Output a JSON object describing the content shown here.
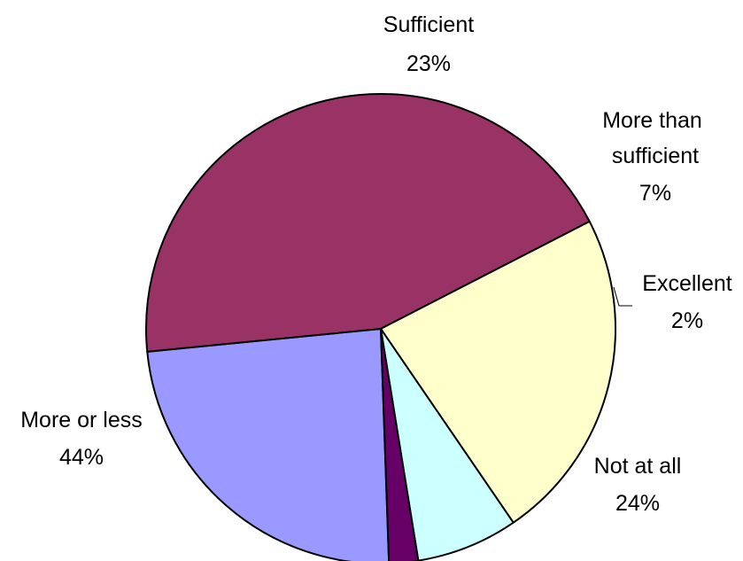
{
  "chart_data": {
    "type": "pie",
    "slices": [
      {
        "label": "Not at all",
        "value": 24,
        "value_label": "24%",
        "color": "#9999FF"
      },
      {
        "label": "More or less",
        "value": 44,
        "value_label": "44%",
        "color": "#993366"
      },
      {
        "label": "Sufficient",
        "value": 23,
        "value_label": "23%",
        "color": "#FFFFCC"
      },
      {
        "label": "More than sufficient",
        "value": 7,
        "value_label": "7%",
        "color": "#CCFFFF"
      },
      {
        "label": "Excellent",
        "value": 2,
        "value_label": "2%",
        "color": "#660066"
      }
    ],
    "start_angle_deg": 88,
    "direction": "clockwise",
    "legend": "none",
    "labels": "outside"
  }
}
